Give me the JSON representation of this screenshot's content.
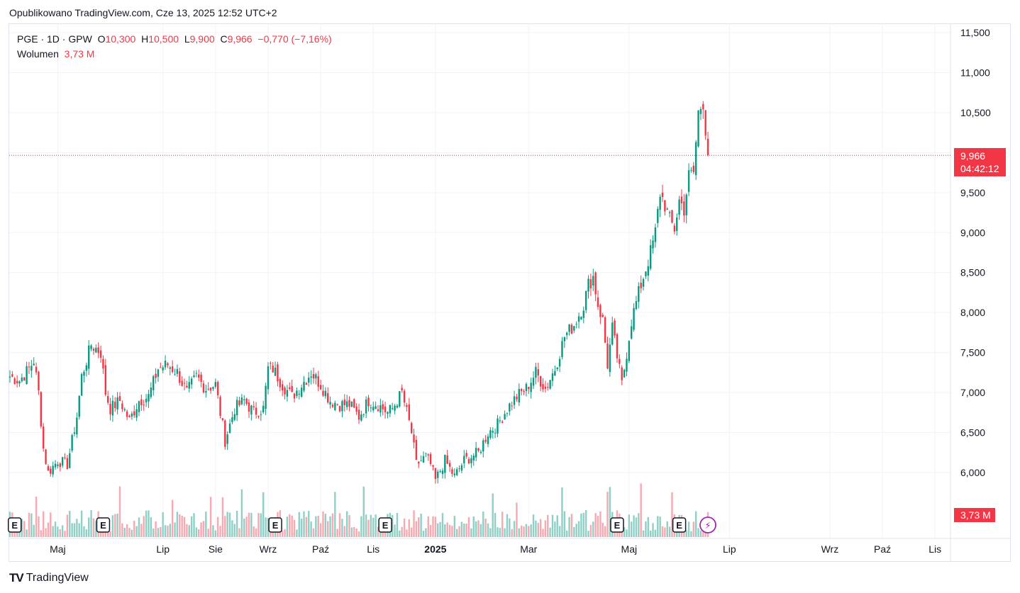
{
  "header": {
    "published": "Opublikowano TradingView.com, Cze 13, 2025 12:52 UTC+2"
  },
  "legend": {
    "symbol": "PGE · 1D · GPW",
    "open_label": "O",
    "open": "10,300",
    "high_label": "H",
    "high": "10,500",
    "low_label": "L",
    "low": "9,900",
    "close_label": "C",
    "close": "9,966",
    "change": "−0,770 (−7,16%)",
    "volume_label": "Wolumen",
    "volume": "3,73 M"
  },
  "price_badge": {
    "price": "9,966",
    "countdown": "04:42:12"
  },
  "volume_badge": "3,73 M",
  "brand": {
    "logo": "TV",
    "name": "TradingView"
  },
  "colors": {
    "up": "#089981",
    "down": "#f23645",
    "up_vol": "#8fd0c6",
    "down_vol": "#f6a9b0",
    "grid": "#f0f3fa",
    "event": "#9c27b0"
  },
  "chart_data": {
    "type": "candlestick",
    "title": "PGE · 1D · GPW",
    "y_axis": {
      "min": 5500,
      "max": 11500,
      "ticks": [
        "11,500",
        "11,000",
        "10,500",
        "10,000",
        "9,500",
        "9,000",
        "8,500",
        "8,000",
        "7,500",
        "7,000",
        "6,500",
        "6,000"
      ],
      "tick_values": [
        11500,
        11000,
        10500,
        10000,
        9500,
        9000,
        8500,
        8000,
        7500,
        7000,
        6500,
        6000
      ]
    },
    "x_ticks": [
      {
        "label": "Maj",
        "day": 20
      },
      {
        "label": "Lip",
        "day": 64
      },
      {
        "label": "Sie",
        "day": 86
      },
      {
        "label": "Wrz",
        "day": 108
      },
      {
        "label": "Paź",
        "day": 130
      },
      {
        "label": "Lis",
        "day": 152
      },
      {
        "label": "2025",
        "day": 178,
        "bold": true
      },
      {
        "label": "Mar",
        "day": 217
      },
      {
        "label": "Maj",
        "day": 259
      },
      {
        "label": "Lip",
        "day": 301
      },
      {
        "label": "Wrz",
        "day": 343
      },
      {
        "label": "Paź",
        "day": 365
      },
      {
        "label": "Lis",
        "day": 387
      }
    ],
    "last_price": 9966,
    "total_days": 412,
    "anchors": [
      [
        0,
        7200
      ],
      [
        4,
        7150
      ],
      [
        8,
        7300
      ],
      [
        10,
        7400
      ],
      [
        12,
        7000
      ],
      [
        14,
        6300
      ],
      [
        16,
        6000
      ],
      [
        20,
        6150
      ],
      [
        24,
        6100
      ],
      [
        28,
        6700
      ],
      [
        30,
        7200
      ],
      [
        34,
        7600
      ],
      [
        38,
        7500
      ],
      [
        40,
        7000
      ],
      [
        42,
        6800
      ],
      [
        46,
        6900
      ],
      [
        50,
        6650
      ],
      [
        54,
        6900
      ],
      [
        58,
        6950
      ],
      [
        62,
        7300
      ],
      [
        66,
        7350
      ],
      [
        70,
        7250
      ],
      [
        74,
        7000
      ],
      [
        78,
        7200
      ],
      [
        82,
        7050
      ],
      [
        86,
        7100
      ],
      [
        90,
        6400
      ],
      [
        94,
        6800
      ],
      [
        98,
        6900
      ],
      [
        102,
        6750
      ],
      [
        106,
        6800
      ],
      [
        108,
        7300
      ],
      [
        110,
        7300
      ],
      [
        114,
        7100
      ],
      [
        118,
        6950
      ],
      [
        122,
        7100
      ],
      [
        126,
        7250
      ],
      [
        130,
        7100
      ],
      [
        134,
        6900
      ],
      [
        138,
        6850
      ],
      [
        142,
        6850
      ],
      [
        146,
        6700
      ],
      [
        150,
        6900
      ],
      [
        154,
        6850
      ],
      [
        158,
        6750
      ],
      [
        160,
        6800
      ],
      [
        164,
        7000
      ],
      [
        168,
        6500
      ],
      [
        170,
        6100
      ],
      [
        174,
        6200
      ],
      [
        176,
        6100
      ],
      [
        178,
        5900
      ],
      [
        182,
        6150
      ],
      [
        186,
        5950
      ],
      [
        190,
        6150
      ],
      [
        196,
        6250
      ],
      [
        200,
        6500
      ],
      [
        204,
        6600
      ],
      [
        208,
        6800
      ],
      [
        212,
        6950
      ],
      [
        216,
        7050
      ],
      [
        220,
        7250
      ],
      [
        224,
        7050
      ],
      [
        228,
        7300
      ],
      [
        232,
        7700
      ],
      [
        236,
        7850
      ],
      [
        240,
        8100
      ],
      [
        242,
        8350
      ],
      [
        244,
        8450
      ],
      [
        246,
        8100
      ],
      [
        248,
        7900
      ],
      [
        250,
        7350
      ],
      [
        252,
        7800
      ],
      [
        254,
        7450
      ],
      [
        256,
        7100
      ],
      [
        258,
        7500
      ],
      [
        260,
        7900
      ],
      [
        264,
        8350
      ],
      [
        268,
        8750
      ],
      [
        270,
        9000
      ],
      [
        272,
        9500
      ],
      [
        274,
        9350
      ],
      [
        276,
        9150
      ],
      [
        278,
        9050
      ],
      [
        280,
        9400
      ],
      [
        282,
        9300
      ],
      [
        284,
        9700
      ],
      [
        286,
        9750
      ],
      [
        288,
        10500
      ],
      [
        290,
        10650
      ],
      [
        292,
        9966
      ]
    ],
    "volume_scale_millions": [
      0,
      6
    ],
    "events": [
      {
        "type": "earnings",
        "label": "E",
        "day": 2
      },
      {
        "type": "earnings",
        "label": "E",
        "day": 39
      },
      {
        "type": "earnings",
        "label": "E",
        "day": 111
      },
      {
        "type": "earnings",
        "label": "E",
        "day": 157
      },
      {
        "type": "earnings",
        "label": "E",
        "day": 254
      },
      {
        "type": "earnings",
        "label": "E",
        "day": 280
      },
      {
        "type": "dividend",
        "label": "⚡",
        "day": 292
      }
    ]
  }
}
